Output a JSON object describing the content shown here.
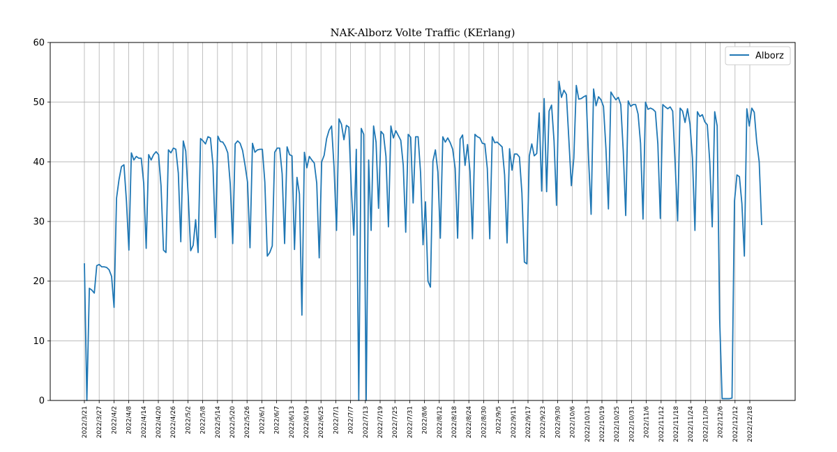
{
  "chart_data": {
    "type": "line",
    "title": "NAK-Alborz Volte Traffic (KErlang)",
    "xlabel": "",
    "ylabel": "",
    "ylim": [
      0,
      60
    ],
    "yticks": [
      0,
      10,
      20,
      30,
      40,
      50,
      60
    ],
    "grid": true,
    "legend_position": "top-right",
    "line_color": "#1f77b4",
    "xtick_labels": [
      "2022/3/21",
      "2022/3/27",
      "2022/4/2",
      "2022/4/8",
      "2022/4/14",
      "2022/4/20",
      "2022/4/26",
      "2022/5/2",
      "2022/5/8",
      "2022/5/14",
      "2022/5/20",
      "2022/5/26",
      "2022/6/1",
      "2022/6/7",
      "2022/6/13",
      "2022/6/19",
      "2022/6/25",
      "2022/7/1",
      "2022/7/7",
      "2022/7/13",
      "2022/7/19",
      "2022/7/25",
      "2022/7/31",
      "2022/8/6",
      "2022/8/12",
      "2022/8/18",
      "2022/8/24",
      "2022/8/30",
      "2022/9/5",
      "2022/9/11",
      "2022/9/17",
      "2022/9/23",
      "2022/9/30",
      "2022/10/6",
      "2022/10/13",
      "2022/10/19",
      "2022/10/25",
      "2022/10/31",
      "2022/11/6",
      "2022/11/12",
      "2022/11/18",
      "2022/11/24",
      "2022/11/30",
      "2022/12/6",
      "2022/12/12",
      "2022/12/18"
    ],
    "series": [
      {
        "name": "Alborz",
        "values": [
          23.0,
          0.0,
          18.8,
          18.5,
          18.0,
          22.6,
          22.8,
          22.4,
          22.4,
          22.3,
          21.9,
          20.8,
          15.6,
          33.9,
          37.0,
          39.2,
          39.5,
          33.5,
          25.2,
          41.5,
          40.3,
          40.9,
          40.6,
          40.6,
          36.4,
          25.5,
          41.2,
          40.3,
          41.2,
          41.7,
          41.2,
          36.0,
          25.2,
          24.8,
          42.0,
          41.5,
          42.3,
          42.1,
          38.1,
          26.6,
          43.5,
          41.8,
          34.3,
          25.1,
          26.0,
          30.3,
          24.8,
          43.9,
          43.5,
          43.0,
          44.2,
          44.0,
          39.5,
          27.3,
          44.3,
          43.4,
          43.3,
          42.6,
          41.5,
          36.3,
          26.3,
          43.0,
          43.5,
          43.1,
          41.9,
          39.4,
          36.6,
          25.6,
          43.1,
          41.6,
          42.0,
          42.1,
          42.1,
          36.6,
          24.2,
          24.8,
          25.9,
          41.6,
          42.3,
          42.3,
          38.0,
          26.3,
          42.5,
          41.2,
          41.0,
          25.3,
          37.4,
          34.6,
          14.3,
          41.6,
          39.0,
          40.9,
          40.3,
          39.8,
          36.4,
          23.9,
          40.0,
          41.1,
          43.9,
          45.3,
          46.0,
          39.1,
          28.5,
          47.2,
          46.3,
          43.7,
          46.1,
          45.8,
          35.3,
          27.7,
          42.1,
          0.0,
          45.6,
          44.6,
          0.0,
          40.3,
          28.5,
          46.0,
          43.3,
          32.2,
          45.1,
          44.6,
          40.9,
          29.1,
          46.0,
          44.0,
          45.2,
          44.4,
          43.6,
          39.4,
          28.2,
          44.6,
          44.1,
          33.1,
          44.2,
          44.2,
          38.2,
          26.1,
          33.3,
          20.0,
          19.0,
          40.1,
          42.0,
          38.3,
          27.2,
          44.2,
          43.3,
          44.0,
          43.2,
          42.1,
          38.9,
          27.2,
          43.8,
          44.5,
          39.4,
          42.9,
          38.4,
          27.1,
          44.6,
          44.2,
          44.0,
          43.1,
          43.0,
          38.9,
          27.1,
          44.2,
          43.2,
          43.3,
          42.9,
          42.5,
          37.8,
          26.4,
          42.2,
          38.6,
          41.3,
          41.3,
          40.8,
          34.8,
          23.2,
          22.9,
          41.0,
          43.0,
          41.0,
          41.4,
          48.2,
          35.1,
          50.6,
          35.0,
          48.5,
          49.5,
          43.5,
          32.7,
          53.5,
          50.8,
          52.0,
          51.3,
          43.7,
          36.0,
          40.6,
          52.8,
          50.5,
          50.6,
          50.9,
          51.1,
          40.3,
          31.2,
          52.2,
          49.4,
          50.9,
          50.4,
          49.3,
          42.2,
          32.1,
          51.7,
          51.0,
          50.4,
          50.8,
          49.6,
          41.8,
          31.0,
          50.2,
          49.3,
          49.6,
          49.6,
          48.0,
          43.1,
          30.4,
          50.0,
          48.8,
          49.0,
          48.8,
          48.4,
          43.0,
          30.5,
          49.6,
          49.2,
          48.9,
          49.2,
          48.5,
          39.7,
          30.1,
          49.0,
          48.5,
          46.6,
          48.9,
          46.3,
          40.6,
          28.5,
          48.4,
          47.6,
          47.9,
          46.7,
          46.2,
          40.0,
          29.1,
          48.4,
          46.0,
          13.7,
          0.3,
          0.3,
          0.3,
          0.3,
          0.4,
          33.4,
          37.8,
          37.5,
          33.0,
          24.2,
          48.9,
          46.0,
          49.0,
          48.3,
          43.3,
          40.0,
          29.4
        ]
      }
    ]
  }
}
